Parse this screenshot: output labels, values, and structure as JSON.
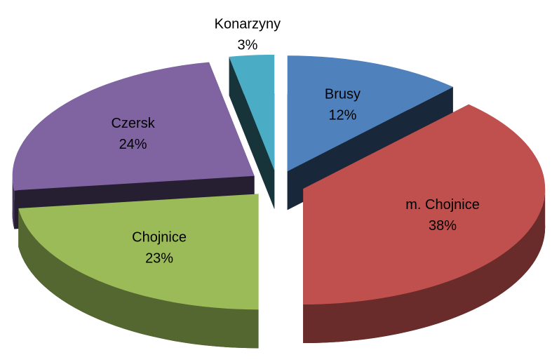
{
  "chart_data": {
    "type": "pie",
    "categories": [
      "Brusy",
      "m. Chojnice",
      "Chojnice",
      "Czersk",
      "Konarzyny"
    ],
    "values": [
      12,
      38,
      23,
      24,
      3
    ],
    "value_labels": [
      "12%",
      "38%",
      "23%",
      "24%",
      "3%"
    ],
    "colors": [
      "#4f81bd",
      "#c0504d",
      "#9bbb59",
      "#8064a2",
      "#4bacc6"
    ],
    "exploded": true,
    "three_d": true
  }
}
